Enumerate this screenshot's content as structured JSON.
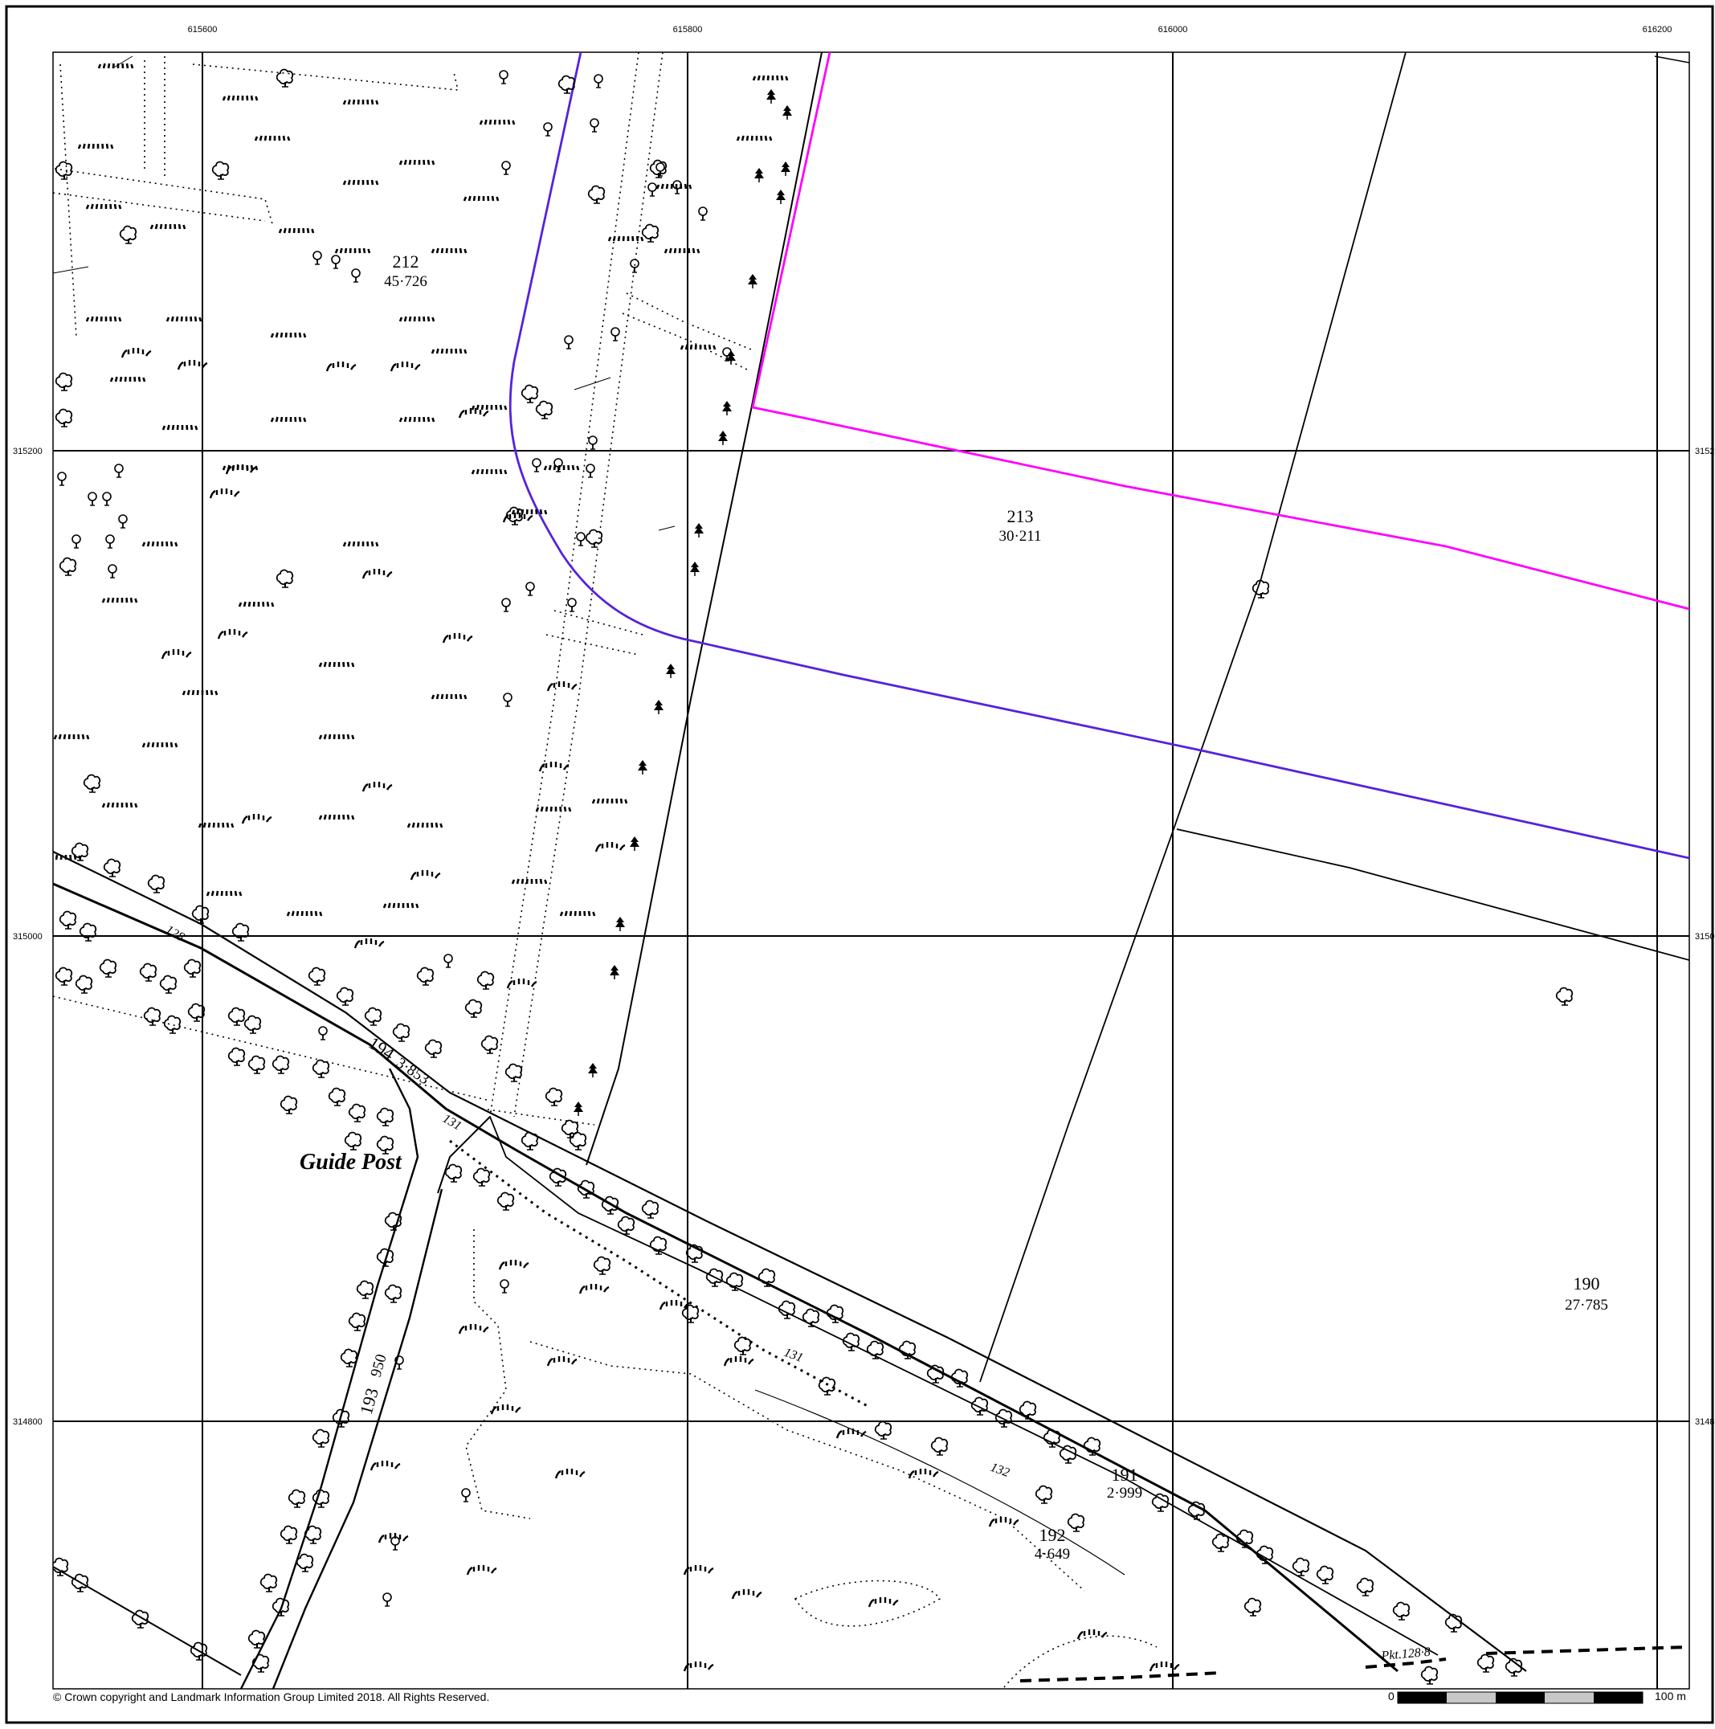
{
  "map": {
    "easting_labels": [
      "615600",
      "615800",
      "616000",
      "616200"
    ],
    "northing_labels": [
      "315200",
      "315000",
      "314800"
    ],
    "northing_labels_right": [
      "3152",
      "3150",
      "3148"
    ],
    "parcels": [
      {
        "number": "212",
        "area": "45·726"
      },
      {
        "number": "213",
        "area": "30·211"
      },
      {
        "number": "190",
        "area": "27·785"
      },
      {
        "number": "191",
        "area": "2·999"
      },
      {
        "number": "192",
        "area": "4·649"
      },
      {
        "number": "193",
        "area": "950"
      },
      {
        "number": "194",
        "area": "3·853"
      }
    ],
    "spot_heights": [
      "128",
      "131",
      "131",
      "132"
    ],
    "feature_text": "Guide Post",
    "benchmark_text": "Pkt.128·8",
    "boundary_colors": {
      "site": "#ff00ff",
      "buffer": "#5522dd"
    }
  },
  "footer": {
    "copyright": "© Crown copyright and Landmark Information Group Limited 2018.  All Rights Reserved.",
    "scale_start": "0",
    "scale_end": "100 m"
  }
}
